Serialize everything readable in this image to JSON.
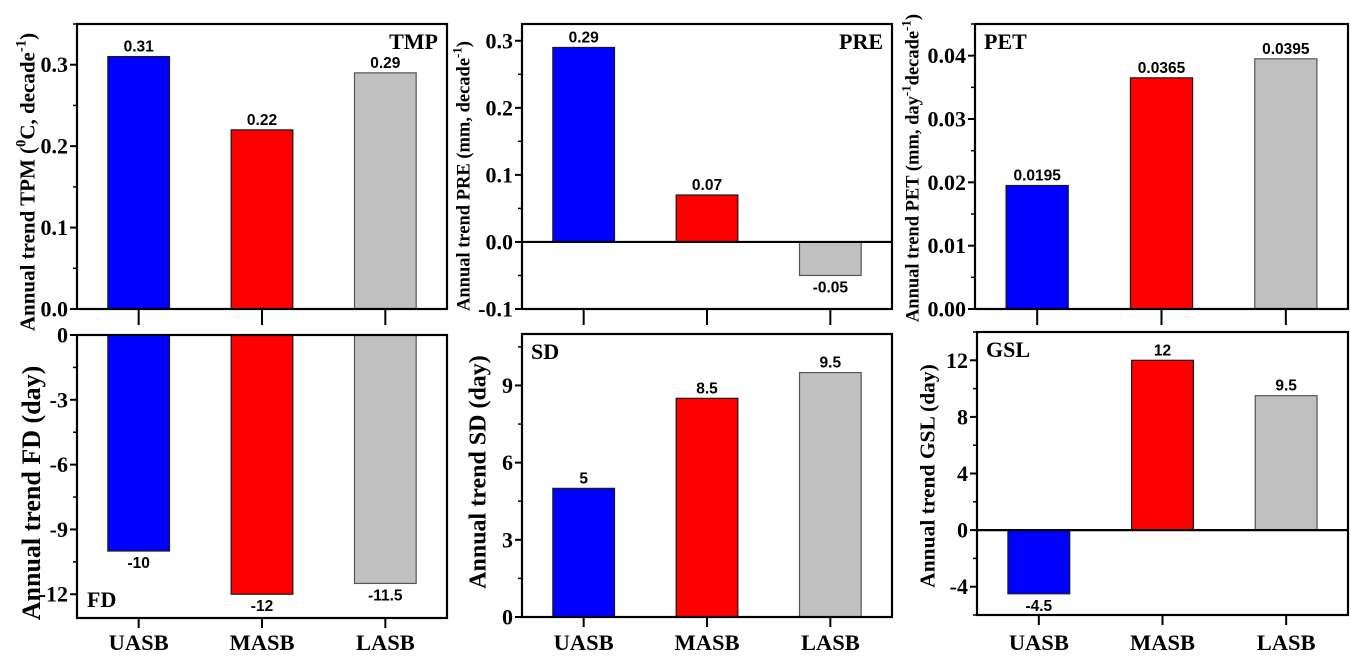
{
  "figure": {
    "categories": [
      "UASB",
      "MASB",
      "LASB"
    ]
  },
  "chart_data": [
    {
      "id": "tmp",
      "type": "bar",
      "title": "",
      "panel_label": "TMP",
      "panel_label_position": "top-right",
      "categories": [
        "UASB",
        "MASB",
        "LASB"
      ],
      "values": [
        0.31,
        0.22,
        0.29
      ],
      "value_labels": [
        "0.31",
        "0.22",
        "0.29"
      ],
      "colors": [
        "#0000FF",
        "#FF0000",
        "#C0C0C0"
      ],
      "xlabel": "",
      "ylabel": "Annual trend TPM (⁰C, decade⁻¹)",
      "ylabel_parts": [
        {
          "t": "Annual trend TPM (",
          "sup": false
        },
        {
          "t": "0",
          "sup": true
        },
        {
          "t": "C, decade",
          "sup": false
        },
        {
          "t": "-1",
          "sup": true
        },
        {
          "t": ")",
          "sup": false
        }
      ],
      "ylim": [
        0,
        0.35
      ],
      "yticks": [
        0,
        0.1,
        0.2,
        0.3
      ],
      "ytick_labels": [
        "0.0",
        "0.1",
        "0.2",
        "0.3"
      ],
      "yminor_step": 0.05,
      "show_xtick_labels": false,
      "grid": false
    },
    {
      "id": "pre",
      "type": "bar",
      "title": "",
      "panel_label": "PRE",
      "panel_label_position": "top-right",
      "categories": [
        "UASB",
        "MASB",
        "LASB"
      ],
      "values": [
        0.29,
        0.07,
        -0.05
      ],
      "value_labels": [
        "0.29",
        "0.07",
        "-0.05"
      ],
      "colors": [
        "#0000FF",
        "#FF0000",
        "#C0C0C0"
      ],
      "xlabel": "",
      "ylabel": "Annual trend PRE (mm, decade⁻¹)",
      "ylabel_parts": [
        {
          "t": "Annual trend PRE (mm, decade",
          "sup": false
        },
        {
          "t": "-1",
          "sup": true
        },
        {
          "t": ")",
          "sup": false
        }
      ],
      "ylim": [
        -0.1,
        0.325
      ],
      "yticks": [
        -0.1,
        0,
        0.1,
        0.2,
        0.3
      ],
      "ytick_labels": [
        "-0.1",
        "0.0",
        "0.1",
        "0.2",
        "0.3"
      ],
      "yminor_step": 0.05,
      "show_xtick_labels": false,
      "grid": false
    },
    {
      "id": "pet",
      "type": "bar",
      "title": "",
      "panel_label": "PET",
      "panel_label_position": "top-left",
      "categories": [
        "UASB",
        "MASB",
        "LASB"
      ],
      "values": [
        0.0195,
        0.0365,
        0.0395
      ],
      "value_labels": [
        "0.0195",
        "0.0365",
        "0.0395"
      ],
      "colors": [
        "#0000FF",
        "#FF0000",
        "#C0C0C0"
      ],
      "xlabel": "",
      "ylabel": "Annual trend PET (mm, day⁻¹decade⁻¹)",
      "ylabel_parts": [
        {
          "t": "Annual trend PET (mm, day",
          "sup": false
        },
        {
          "t": "-1",
          "sup": true
        },
        {
          "t": "decade",
          "sup": false
        },
        {
          "t": "-1",
          "sup": true
        },
        {
          "t": ")",
          "sup": false
        }
      ],
      "ylim": [
        0,
        0.045
      ],
      "yticks": [
        0,
        0.01,
        0.02,
        0.03,
        0.04
      ],
      "ytick_labels": [
        "0.00",
        "0.01",
        "0.02",
        "0.03",
        "0.04"
      ],
      "yminor_step": 0.005,
      "show_xtick_labels": false,
      "grid": false
    },
    {
      "id": "fd",
      "type": "bar",
      "title": "",
      "panel_label": "FD",
      "panel_label_position": "bottom-left",
      "categories": [
        "UASB",
        "MASB",
        "LASB"
      ],
      "values": [
        -10,
        -12,
        -11.5
      ],
      "value_labels": [
        "-10",
        "-12",
        "-11.5"
      ],
      "colors": [
        "#0000FF",
        "#FF0000",
        "#C0C0C0"
      ],
      "xlabel": "",
      "ylabel": "Annual trend FD (day)",
      "ylabel_parts": [
        {
          "t": "Annual trend FD (day)",
          "sup": false
        }
      ],
      "ylim": [
        -13.1,
        0
      ],
      "yticks": [
        -12,
        -9,
        -6,
        -3,
        0
      ],
      "ytick_labels": [
        "-12",
        "-9",
        "-6",
        "-3",
        "0"
      ],
      "yminor_step": 1.5,
      "show_xtick_labels": true,
      "grid": false
    },
    {
      "id": "sd",
      "type": "bar",
      "title": "",
      "panel_label": "SD",
      "panel_label_position": "top-left",
      "categories": [
        "UASB",
        "MASB",
        "LASB"
      ],
      "values": [
        5,
        8.5,
        9.5
      ],
      "value_labels": [
        "5",
        "8.5",
        "9.5"
      ],
      "colors": [
        "#0000FF",
        "#FF0000",
        "#C0C0C0"
      ],
      "xlabel": "",
      "ylabel": "Annual trend SD (day)",
      "ylabel_parts": [
        {
          "t": "Annual trend SD (day)",
          "sup": false
        }
      ],
      "ylim": [
        0,
        11
      ],
      "yticks": [
        0,
        3,
        6,
        9
      ],
      "ytick_labels": [
        "0",
        "3",
        "6",
        "9"
      ],
      "yminor_step": 1.5,
      "show_xtick_labels": true,
      "grid": false
    },
    {
      "id": "gsl",
      "type": "bar",
      "title": "",
      "panel_label": "GSL",
      "panel_label_position": "top-left",
      "categories": [
        "UASB",
        "MASB",
        "LASB"
      ],
      "values": [
        -4.5,
        12,
        9.5
      ],
      "value_labels": [
        "-4.5",
        "12",
        "9.5"
      ],
      "colors": [
        "#0000FF",
        "#FF0000",
        "#C0C0C0"
      ],
      "xlabel": "",
      "ylabel": "Annual trend GSL (day)",
      "ylabel_parts": [
        {
          "t": "Annual trend GSL (day)",
          "sup": false
        }
      ],
      "ylim": [
        -6,
        14
      ],
      "yticks": [
        -4,
        0,
        4,
        8,
        12
      ],
      "ytick_labels": [
        "-4",
        "0",
        "4",
        "8",
        "12"
      ],
      "yminor_step": 2,
      "show_xtick_labels": true,
      "grid": false
    }
  ]
}
